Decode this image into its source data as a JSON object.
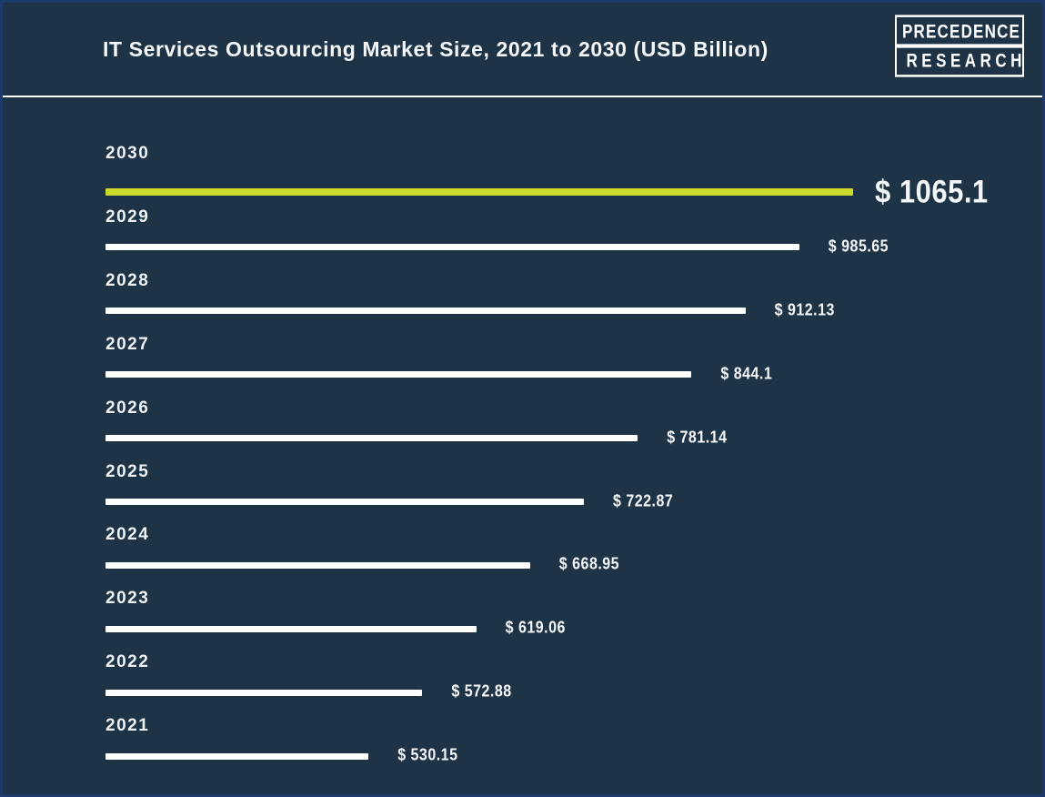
{
  "header": {
    "title": "IT Services Outsourcing Market Size, 2021 to 2030 (USD Billion)",
    "logo": {
      "line1": "PRECEDENCE",
      "line2": "RESEARCH"
    }
  },
  "chart_data": {
    "type": "bar",
    "orientation": "horizontal",
    "title": "IT Services Outsourcing Market Size, 2021 to 2030 (USD Billion)",
    "xlabel": "",
    "ylabel": "",
    "unit": "USD Billion",
    "categories": [
      "2030",
      "2029",
      "2028",
      "2027",
      "2026",
      "2025",
      "2024",
      "2023",
      "2022",
      "2021"
    ],
    "values": [
      1065.1,
      985.65,
      912.13,
      844.1,
      781.14,
      722.87,
      668.95,
      619.06,
      572.88,
      530.15
    ],
    "values_display": [
      "$ 1065.1",
      "$ 985.65",
      "$ 912.13",
      "$ 844.1",
      "$ 781.14",
      "$ 722.87",
      "$ 668.95",
      "$ 619.06",
      "$ 572.88",
      "$ 530.15"
    ],
    "highlight_category": "2030",
    "legend": [],
    "grid": false,
    "layout_hints": {
      "bar_length_rule": "equal step per year rank, not proportional to value",
      "order_top_to_bottom": "2030 to 2021"
    },
    "colors": {
      "background": "#1e3346",
      "border": "#1c3a6b",
      "bar": "#ffffff",
      "highlight_bar": "#c9da2a",
      "text": "#ffffff"
    }
  }
}
